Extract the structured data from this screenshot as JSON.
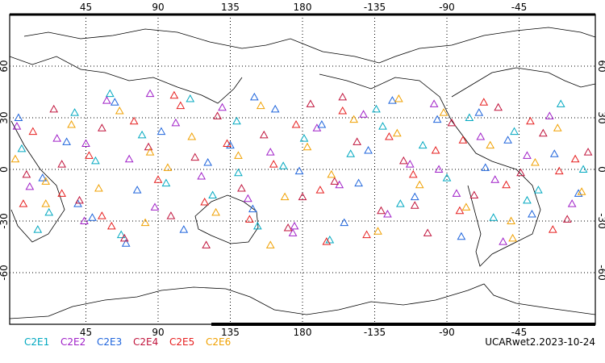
{
  "chart_data": {
    "type": "scatter",
    "xlim": [
      -2.5,
      362.5
    ],
    "ylim": [
      -90,
      90
    ],
    "xticks": [
      45,
      90,
      135,
      180,
      {
        "value": 225,
        "label": "-135"
      },
      {
        "value": 270,
        "label": "-90"
      },
      {
        "value": 315,
        "label": "-45"
      }
    ],
    "yticks": [
      -60,
      -30,
      0,
      30,
      60
    ],
    "grid": true,
    "note": "UCARwet2.2023-10-24",
    "series": [
      {
        "name": "C2E1",
        "color": "#00a8c0",
        "x": [
          5,
          22,
          38,
          51,
          67,
          80,
          95,
          110,
          124,
          139,
          152,
          168,
          181,
          197,
          210,
          226,
          241,
          255,
          270,
          284,
          299,
          312,
          327,
          341,
          355,
          15,
          60,
          140,
          230,
          320
        ],
        "values": [
          12,
          -25,
          33,
          5,
          -38,
          20,
          -8,
          41,
          -15,
          28,
          -33,
          2,
          18,
          -41,
          9,
          35,
          -20,
          14,
          -5,
          30,
          -28,
          22,
          -12,
          38,
          0,
          -35,
          44,
          -2,
          25,
          -18
        ]
      },
      {
        "name": "C2E2",
        "color": "#a020c8",
        "x": [
          10,
          27,
          44,
          58,
          72,
          88,
          101,
          117,
          130,
          146,
          160,
          174,
          189,
          203,
          218,
          233,
          247,
          262,
          276,
          291,
          305,
          320,
          334,
          348,
          2,
          85,
          175,
          265,
          300,
          45
        ],
        "values": [
          -10,
          18,
          -30,
          40,
          6,
          -22,
          27,
          -4,
          36,
          -17,
          10,
          -37,
          24,
          -9,
          32,
          -26,
          3,
          38,
          -14,
          19,
          -42,
          8,
          31,
          -20,
          25,
          44,
          -33,
          0,
          -6,
          15
        ]
      },
      {
        "name": "C2E3",
        "color": "#1e64dc",
        "x": [
          3,
          18,
          33,
          49,
          63,
          77,
          92,
          106,
          121,
          135,
          149,
          163,
          178,
          192,
          206,
          221,
          236,
          250,
          264,
          279,
          294,
          308,
          323,
          337,
          352,
          70,
          150,
          215,
          290,
          40
        ],
        "values": [
          30,
          -5,
          16,
          -28,
          39,
          -12,
          22,
          -35,
          4,
          14,
          -23,
          35,
          -1,
          26,
          -31,
          11,
          40,
          -16,
          29,
          -39,
          1,
          17,
          -26,
          9,
          -14,
          -43,
          42,
          -8,
          33,
          -20
        ]
      },
      {
        "name": "C2E4",
        "color": "#c0143c",
        "x": [
          8,
          25,
          41,
          55,
          69,
          84,
          98,
          113,
          127,
          142,
          156,
          171,
          185,
          200,
          214,
          229,
          243,
          258,
          273,
          287,
          302,
          316,
          330,
          345,
          358,
          120,
          205,
          250,
          30,
          180
        ],
        "values": [
          -3,
          35,
          -18,
          24,
          -40,
          13,
          -27,
          7,
          31,
          -11,
          20,
          -34,
          38,
          -7,
          16,
          -24,
          5,
          -37,
          27,
          -15,
          36,
          -2,
          21,
          -29,
          10,
          -44,
          42,
          -21,
          3,
          -16
        ]
      },
      {
        "name": "C2E5",
        "color": "#e61e1e",
        "x": [
          12,
          30,
          47,
          61,
          75,
          90,
          104,
          119,
          133,
          147,
          162,
          176,
          191,
          205,
          220,
          234,
          249,
          263,
          278,
          293,
          307,
          322,
          336,
          350,
          6,
          100,
          195,
          280,
          340,
          55
        ],
        "values": [
          22,
          -14,
          8,
          -33,
          28,
          -6,
          37,
          -19,
          15,
          -29,
          3,
          26,
          -12,
          34,
          -38,
          19,
          -3,
          11,
          -24,
          39,
          -9,
          28,
          -35,
          6,
          -20,
          43,
          -42,
          17,
          -1,
          -27
        ]
      },
      {
        "name": "C2E6",
        "color": "#f0a000",
        "x": [
          1,
          20,
          36,
          53,
          66,
          82,
          96,
          111,
          126,
          140,
          154,
          169,
          183,
          198,
          212,
          227,
          239,
          253,
          268,
          282,
          297,
          311,
          325,
          339,
          354,
          160,
          240,
          310,
          85,
          20
        ],
        "values": [
          6,
          -20,
          26,
          -11,
          34,
          -31,
          1,
          19,
          -25,
          8,
          37,
          -16,
          13,
          -3,
          29,
          -36,
          21,
          -9,
          33,
          -22,
          14,
          -40,
          4,
          24,
          -13,
          -44,
          41,
          -30,
          10,
          -7
        ]
      }
    ]
  }
}
